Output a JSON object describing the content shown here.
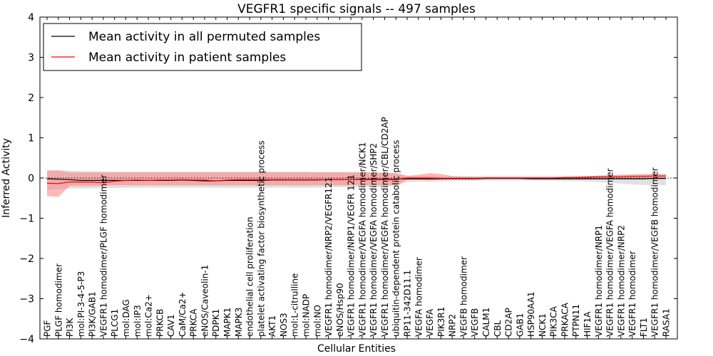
{
  "chart_data": {
    "type": "line",
    "title": "VEGFR1 specific signals -- 497 samples",
    "xlabel": "Cellular Entities",
    "ylabel": "Inferred Activity",
    "ylim": [
      -4,
      4
    ],
    "yticks": [
      -4,
      -3,
      -2,
      -1,
      0,
      1,
      2,
      3,
      4
    ],
    "ytick_labels": [
      "−4",
      "−3",
      "−2",
      "−1",
      "0",
      "1",
      "2",
      "3",
      "4"
    ],
    "grid": false,
    "legend_position": "top-left",
    "categories": [
      "PGF",
      "PLGF homodimer",
      "PI3K",
      "mol:PI-3-4-5-P3",
      "PI3K/GAB1",
      "VEGFR1 homodimer/PLGF homodimer",
      "PLCG1",
      "mol:DAG",
      "mol:IP3",
      "mol:Ca2+",
      "PRKCB",
      "CAV1",
      "CaM/Ca2+",
      "PRKCA",
      "eNOS/Caveolin-1",
      "PDPK1",
      "MAPK1",
      "MAPK3",
      "endothelial cell proliferation",
      "platelet activating factor biosynthetic process",
      "AKT1",
      "NOS3",
      "mol:L-citrulline",
      "mol:NADP",
      "mol:NO",
      "VEGFR1 homodimer/NRP2/VEGFR121",
      "eNOS/Hsp90",
      "VEGFR1 homodimer/NRP1/VEGFR 121",
      "VEGFR1 homodimer/VEGFA homodimer/NCK1",
      "VEGFR1 homodimer/VEGFA homodimer/SHP2",
      "VEGFR1 homodimer/VEGFA homodimer/CBL/CD2AP",
      "ubiquitin-dependent protein catabolic process",
      "RP11-342D11.1",
      "VEGFA homodimer",
      "VEGFA",
      "PIK3R1",
      "NRP2",
      "VEGFB homodimer",
      "VEGFB",
      "CALM1",
      "CBL",
      "CD2AP",
      "GAB1",
      "HSP90AA1",
      "NCK1",
      "PIK3CA",
      "PRKACA",
      "PTPN11",
      "HIF1A",
      "VEGFR1 homodimer/NRP1",
      "VEGFR1 homodimer/VEGFA homodimer",
      "VEGFR1 homodimer/NRP2",
      "VEGFR1 homodimer",
      "FLT1",
      "VEGFR1 homodimer/VEGFB homodimer",
      "RASA1"
    ],
    "series": [
      {
        "name": "Mean activity in all permuted samples",
        "color": "#000000",
        "band_color": "#c8c8c8",
        "values": [
          -0.02,
          -0.03,
          -0.04,
          -0.06,
          -0.06,
          -0.06,
          -0.06,
          -0.06,
          -0.06,
          -0.06,
          -0.06,
          -0.06,
          -0.05,
          -0.06,
          -0.07,
          -0.07,
          -0.06,
          -0.06,
          -0.06,
          -0.06,
          -0.05,
          -0.05,
          -0.05,
          -0.05,
          -0.05,
          -0.04,
          -0.04,
          -0.04,
          -0.03,
          -0.03,
          -0.03,
          -0.03,
          -0.02,
          -0.02,
          -0.02,
          -0.02,
          -0.02,
          -0.02,
          -0.02,
          -0.01,
          -0.01,
          -0.01,
          -0.01,
          -0.02,
          -0.02,
          -0.02,
          -0.02,
          -0.02,
          -0.02,
          -0.02,
          -0.02,
          -0.02,
          -0.02,
          -0.02,
          -0.01,
          -0.01
        ],
        "lower": [
          -0.3,
          -0.28,
          -0.26,
          -0.26,
          -0.26,
          -0.25,
          -0.25,
          -0.24,
          -0.24,
          -0.24,
          -0.24,
          -0.24,
          -0.24,
          -0.24,
          -0.24,
          -0.24,
          -0.24,
          -0.24,
          -0.24,
          -0.24,
          -0.24,
          -0.24,
          -0.24,
          -0.24,
          -0.24,
          -0.23,
          -0.23,
          -0.23,
          -0.22,
          -0.22,
          -0.21,
          -0.2,
          -0.1,
          -0.09,
          -0.09,
          -0.08,
          -0.08,
          -0.07,
          -0.07,
          -0.06,
          -0.06,
          -0.06,
          -0.06,
          -0.06,
          -0.07,
          -0.07,
          -0.08,
          -0.08,
          -0.09,
          -0.1,
          -0.12,
          -0.14,
          -0.16,
          -0.17,
          -0.18,
          -0.18
        ],
        "upper": [
          0.2,
          0.19,
          0.18,
          0.17,
          0.17,
          0.16,
          0.16,
          0.16,
          0.16,
          0.16,
          0.16,
          0.16,
          0.16,
          0.16,
          0.16,
          0.16,
          0.16,
          0.16,
          0.16,
          0.16,
          0.16,
          0.16,
          0.16,
          0.16,
          0.15,
          0.15,
          0.15,
          0.15,
          0.15,
          0.14,
          0.14,
          0.13,
          0.06,
          0.05,
          0.05,
          0.04,
          0.04,
          0.04,
          0.04,
          0.03,
          0.03,
          0.03,
          0.03,
          0.03,
          0.03,
          0.03,
          0.04,
          0.05,
          0.05,
          0.06,
          0.07,
          0.08,
          0.09,
          0.1,
          0.1,
          0.1
        ]
      },
      {
        "name": "Mean activity in patient samples",
        "color": "#ff0000",
        "band_color": "#ff8080",
        "values": [
          -0.13,
          -0.14,
          -0.1,
          -0.1,
          -0.1,
          -0.12,
          -0.08,
          -0.06,
          -0.05,
          -0.06,
          -0.05,
          -0.05,
          -0.04,
          -0.05,
          -0.05,
          -0.07,
          -0.05,
          -0.04,
          -0.04,
          -0.04,
          -0.04,
          -0.04,
          -0.04,
          -0.04,
          -0.04,
          -0.04,
          -0.04,
          -0.04,
          -0.04,
          -0.04,
          -0.04,
          -0.04,
          0.0,
          0.0,
          0.0,
          -0.01,
          -0.01,
          -0.01,
          -0.01,
          0.0,
          0.0,
          0.0,
          0.0,
          0.0,
          0.0,
          0.0,
          0.01,
          0.01,
          0.02,
          0.03,
          0.03,
          0.03,
          0.04,
          0.04,
          0.05,
          0.05
        ],
        "lower": [
          -0.45,
          -0.47,
          -0.2,
          -0.2,
          -0.2,
          -0.2,
          -0.18,
          -0.18,
          -0.18,
          -0.18,
          -0.18,
          -0.18,
          -0.18,
          -0.18,
          -0.18,
          -0.18,
          -0.18,
          -0.18,
          -0.18,
          -0.18,
          -0.18,
          -0.18,
          -0.18,
          -0.18,
          -0.18,
          -0.18,
          -0.18,
          -0.18,
          -0.18,
          -0.18,
          -0.18,
          -0.18,
          -0.05,
          -0.05,
          -0.06,
          -0.04,
          -0.03,
          -0.03,
          -0.02,
          -0.02,
          -0.02,
          -0.02,
          -0.02,
          -0.02,
          -0.02,
          -0.02,
          -0.02,
          -0.02,
          -0.01,
          -0.01,
          0.0,
          0.0,
          0.0,
          0.0,
          0.0,
          0.0
        ],
        "upper": [
          0.18,
          0.19,
          0.14,
          0.14,
          0.14,
          0.14,
          0.14,
          0.14,
          0.14,
          0.14,
          0.14,
          0.14,
          0.14,
          0.14,
          0.14,
          0.14,
          0.14,
          0.14,
          0.14,
          0.14,
          0.14,
          0.14,
          0.14,
          0.14,
          0.14,
          0.14,
          0.14,
          0.14,
          0.14,
          0.14,
          0.13,
          0.12,
          0.05,
          0.08,
          0.12,
          0.1,
          0.05,
          0.04,
          0.03,
          0.03,
          0.03,
          0.03,
          0.03,
          0.03,
          0.03,
          0.03,
          0.03,
          0.04,
          0.05,
          0.06,
          0.07,
          0.08,
          0.08,
          0.09,
          0.09,
          0.09
        ]
      }
    ]
  }
}
